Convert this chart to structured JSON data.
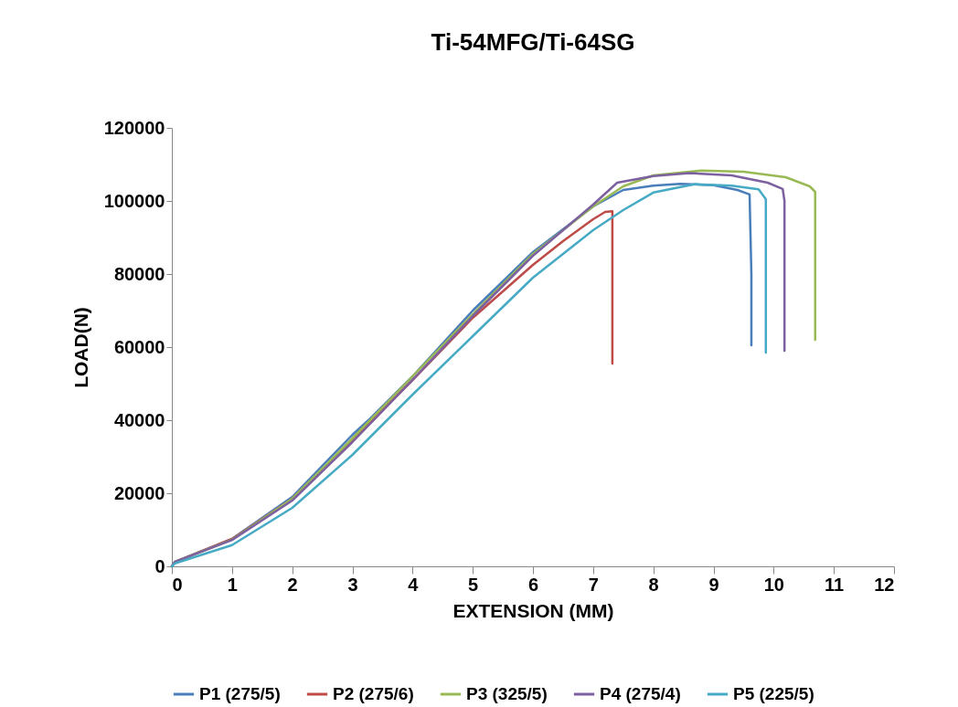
{
  "chart_data": {
    "type": "line",
    "title": "Ti-54MFG/Ti-64SG",
    "xlabel": "EXTENSION (MM)",
    "ylabel": "LOAD(N)",
    "xlim": [
      0,
      12
    ],
    "xticks": [
      0,
      1,
      2,
      3,
      4,
      5,
      6,
      7,
      8,
      9,
      10,
      11,
      12
    ],
    "ylim": [
      0,
      120000
    ],
    "yticks": [
      0,
      20000,
      40000,
      60000,
      80000,
      100000,
      120000
    ],
    "grid": false,
    "legend": "bottom",
    "line_style": "solid",
    "marker": "none",
    "series": [
      {
        "name": "P1 (275/5)",
        "color": "#4a7ebb",
        "x": [
          0,
          0.05,
          1,
          2,
          3,
          3.3,
          4,
          5,
          6,
          7,
          7.5,
          8,
          8.45,
          9,
          9.4,
          9.6,
          9.63,
          9.63
        ],
        "values": [
          0,
          1200,
          7500,
          19000,
          36000,
          40500,
          52000,
          70000,
          86000,
          98500,
          103000,
          104200,
          104700,
          104300,
          103000,
          101800,
          80000,
          60500
        ]
      },
      {
        "name": "P2 (275/6)",
        "color": "#be4b48",
        "x": [
          0,
          0.05,
          1,
          2,
          3,
          4,
          5,
          6,
          6.5,
          7,
          7.2,
          7.32,
          7.32
        ],
        "values": [
          0,
          1200,
          7500,
          18500,
          34500,
          51000,
          68000,
          82500,
          89000,
          95000,
          97000,
          97200,
          55500
        ]
      },
      {
        "name": "P3 (325/5)",
        "color": "#98b954",
        "x": [
          0,
          0.05,
          1,
          2,
          3,
          4,
          5,
          6,
          7,
          7.5,
          8,
          8.8,
          9.5,
          10.2,
          10.6,
          10.69,
          10.69
        ],
        "values": [
          0,
          1200,
          7300,
          18500,
          35000,
          52000,
          69000,
          85500,
          98500,
          104000,
          107000,
          108300,
          108000,
          106500,
          104000,
          102500,
          62000
        ]
      },
      {
        "name": "P4 (275/4)",
        "color": "#7d60a0",
        "x": [
          0,
          0.05,
          1,
          2,
          3,
          4,
          5,
          6,
          7,
          7.4,
          8,
          8.6,
          9.3,
          9.9,
          10.15,
          10.18,
          10.18
        ],
        "values": [
          0,
          1200,
          7200,
          18000,
          34000,
          51000,
          68500,
          85000,
          99000,
          105000,
          106800,
          107600,
          107000,
          105000,
          103300,
          100000,
          59000
        ]
      },
      {
        "name": "P5 (225/5)",
        "color": "#46aac5",
        "x": [
          0,
          0.05,
          1,
          2,
          3,
          4,
          5,
          6,
          7,
          7.5,
          8,
          8.7,
          9.3,
          9.75,
          9.87,
          9.87
        ],
        "values": [
          0,
          800,
          5800,
          16000,
          30500,
          47000,
          63000,
          79000,
          92000,
          97500,
          102300,
          104600,
          104200,
          103200,
          100500,
          58500
        ]
      }
    ]
  }
}
